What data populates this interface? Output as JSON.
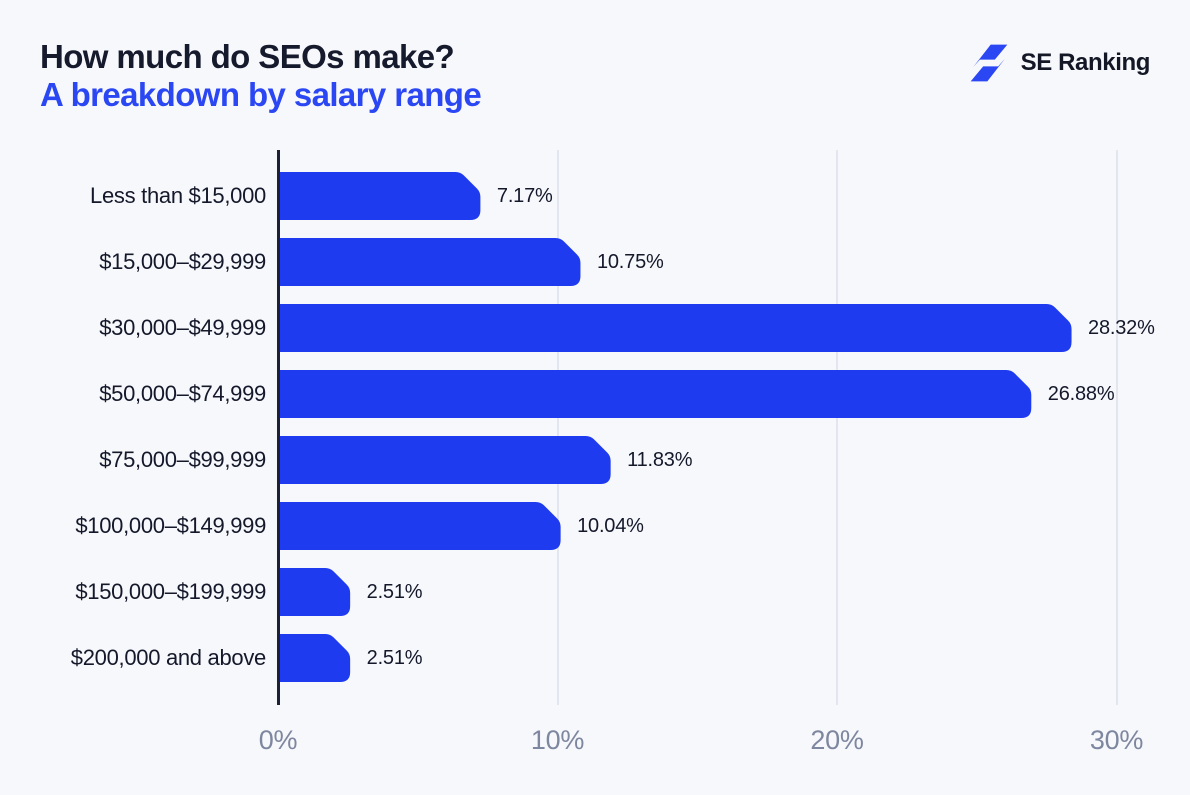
{
  "header": {
    "title": "How much do SEOs make?",
    "subtitle": "A breakdown by salary range",
    "logo_text": "SE Ranking"
  },
  "colors": {
    "background": "#f7f8fb",
    "bar_blue": "#1e3bef",
    "accent_blue": "#2a47f3",
    "title_dark": "#151a2c",
    "axis_dark": "#1c2133",
    "gridline": "#e3e6ee",
    "tick_label": "#7e87a0",
    "category_label": "#14182a",
    "value_label": "#14182a",
    "logo_blue": "#2a47f3",
    "logo_text_dark": "#131726"
  },
  "icons": {
    "logo_icon": "lightning-bolt-icon"
  },
  "chart_data": {
    "type": "bar",
    "orientation": "horizontal",
    "title": "How much do SEOs make? A breakdown by salary range",
    "categories": [
      "Less than $15,000",
      "$15,000–$29,999",
      "$30,000–$49,999",
      "$50,000–$74,999",
      "$75,000–$99,999",
      "$100,000–$149,999",
      "$150,000–$199,999",
      "$200,000 and above"
    ],
    "values": [
      7.17,
      10.75,
      28.32,
      26.88,
      11.83,
      10.04,
      2.51,
      2.51
    ],
    "value_labels": [
      "7.17%",
      "10.75%",
      "28.32%",
      "26.88%",
      "11.83%",
      "10.04%",
      "2.51%",
      "2.51%"
    ],
    "x_ticks": [
      {
        "value": 0,
        "label": "0%"
      },
      {
        "value": 10,
        "label": "10%"
      },
      {
        "value": 20,
        "label": "20%"
      },
      {
        "value": 30,
        "label": "30%"
      }
    ],
    "xlim": [
      0,
      30
    ],
    "xlabel": "",
    "ylabel": "",
    "legend": "none",
    "grid": "vertical-gridlines-at-10-20-30"
  }
}
